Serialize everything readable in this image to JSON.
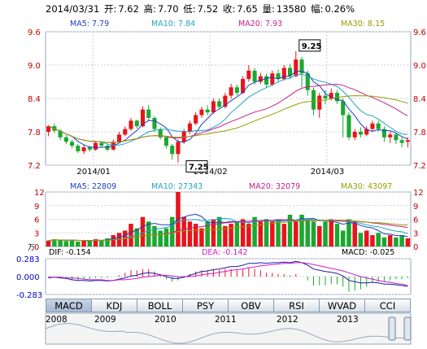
{
  "header": {
    "date": "2014/03/31",
    "open_label": "开:",
    "open": "7.62",
    "high_label": "高:",
    "high": "7.70",
    "low_label": "低:",
    "low": "7.52",
    "close_label": "收:",
    "close": "7.65",
    "volume_label": "量:",
    "volume": "13580",
    "change_label": "幅:",
    "change": "0.26%"
  },
  "price_ma": [
    {
      "label": "MA5: 7.79",
      "color": "#1f3fbf"
    },
    {
      "label": "MA10: 7.84",
      "color": "#21a3c4"
    },
    {
      "label": "MA20: 7.93",
      "color": "#c81e8c"
    },
    {
      "label": "MA30: 8.15",
      "color": "#9a9a00"
    }
  ],
  "volume_ma": [
    {
      "label": "MA5: 22809",
      "color": "#1f3fbf"
    },
    {
      "label": "MA10: 27343",
      "color": "#21a3c4"
    },
    {
      "label": "MA20: 32079",
      "color": "#c81e8c"
    },
    {
      "label": "MA30: 43097",
      "color": "#9a9a00"
    }
  ],
  "macd_labels": {
    "dif": "DIF: -0.154",
    "dea": "DEA: -0.142",
    "macd": "MACD: -0.025"
  },
  "volume_unit": "万",
  "tabs": [
    "MACD",
    "KDJ",
    "BOLL",
    "PSY",
    "OBV",
    "RSI",
    "WVAD",
    "CCI"
  ],
  "active_tab": "MACD",
  "years": [
    "2008",
    "2009",
    "2010",
    "2011",
    "2012",
    "2013"
  ],
  "colors": {
    "up": "#e8141a",
    "down": "#1aa830",
    "dif": "#1f1f9f",
    "dea": "#c81ec8",
    "grid": "#c8d0dc"
  },
  "chart_data": [
    {
      "type": "candlestick",
      "title": "",
      "x_tick_labels": [
        "2014/01",
        "2014/02",
        "2014/03"
      ],
      "y_ticks": [
        7.2,
        7.8,
        8.4,
        9.0,
        9.6
      ],
      "ylim": [
        7.2,
        9.6
      ],
      "annotations": [
        {
          "label": "9.25",
          "value": 9.25
        },
        {
          "label": "7.25",
          "value": 7.25
        }
      ],
      "candles": [
        [
          7.8,
          7.9,
          7.92,
          7.72
        ],
        [
          7.9,
          7.82,
          7.95,
          7.78
        ],
        [
          7.82,
          7.7,
          7.85,
          7.65
        ],
        [
          7.7,
          7.62,
          7.74,
          7.58
        ],
        [
          7.62,
          7.55,
          7.66,
          7.5
        ],
        [
          7.55,
          7.45,
          7.58,
          7.42
        ],
        [
          7.45,
          7.52,
          7.56,
          7.4
        ],
        [
          7.52,
          7.48,
          7.55,
          7.44
        ],
        [
          7.48,
          7.6,
          7.64,
          7.46
        ],
        [
          7.6,
          7.55,
          7.63,
          7.52
        ],
        [
          7.55,
          7.48,
          7.57,
          7.45
        ],
        [
          7.48,
          7.62,
          7.66,
          7.46
        ],
        [
          7.62,
          7.75,
          7.8,
          7.6
        ],
        [
          7.75,
          7.85,
          7.9,
          7.72
        ],
        [
          7.85,
          8.0,
          8.05,
          7.82
        ],
        [
          8.0,
          7.9,
          8.02,
          7.86
        ],
        [
          7.9,
          8.2,
          8.26,
          7.88
        ],
        [
          8.2,
          8.05,
          8.28,
          8.0
        ],
        [
          8.05,
          7.85,
          8.08,
          7.8
        ],
        [
          7.85,
          7.7,
          7.88,
          7.66
        ],
        [
          7.7,
          7.55,
          7.72,
          7.5
        ],
        [
          7.55,
          7.4,
          7.58,
          7.3
        ],
        [
          7.4,
          7.62,
          7.66,
          7.25
        ],
        [
          7.62,
          7.8,
          7.85,
          7.58
        ],
        [
          7.8,
          7.95,
          8.0,
          7.76
        ],
        [
          7.95,
          8.1,
          8.15,
          7.92
        ],
        [
          8.1,
          8.2,
          8.25,
          8.05
        ],
        [
          8.2,
          8.15,
          8.28,
          8.1
        ],
        [
          8.15,
          8.35,
          8.4,
          8.12
        ],
        [
          8.35,
          8.25,
          8.4,
          8.2
        ],
        [
          8.25,
          8.45,
          8.5,
          8.22
        ],
        [
          8.45,
          8.6,
          8.66,
          8.4
        ],
        [
          8.6,
          8.5,
          8.65,
          8.45
        ],
        [
          8.5,
          8.75,
          8.8,
          8.48
        ],
        [
          8.75,
          8.9,
          9.0,
          8.7
        ],
        [
          8.9,
          8.7,
          8.95,
          8.65
        ],
        [
          8.7,
          8.8,
          8.86,
          8.66
        ],
        [
          8.8,
          8.65,
          8.85,
          8.6
        ],
        [
          8.65,
          8.85,
          8.9,
          8.62
        ],
        [
          8.85,
          8.75,
          8.92,
          8.7
        ],
        [
          8.75,
          8.95,
          9.0,
          8.72
        ],
        [
          8.95,
          8.8,
          9.02,
          8.75
        ],
        [
          8.8,
          9.1,
          9.25,
          8.78
        ],
        [
          9.1,
          8.85,
          9.15,
          8.6
        ],
        [
          8.85,
          8.55,
          8.9,
          8.45
        ],
        [
          8.55,
          8.2,
          8.6,
          8.1
        ],
        [
          8.2,
          8.45,
          8.5,
          8.05
        ],
        [
          8.45,
          8.4,
          8.55,
          8.3
        ],
        [
          8.4,
          8.5,
          8.58,
          8.36
        ],
        [
          8.5,
          8.35,
          8.55,
          8.3
        ],
        [
          8.35,
          8.1,
          8.4,
          7.7
        ],
        [
          8.1,
          7.7,
          8.15,
          7.65
        ],
        [
          7.7,
          7.8,
          7.85,
          7.65
        ],
        [
          7.8,
          7.75,
          7.88,
          7.7
        ],
        [
          7.75,
          7.85,
          7.9,
          7.72
        ],
        [
          7.85,
          7.95,
          8.0,
          7.8
        ],
        [
          7.95,
          7.85,
          8.0,
          7.8
        ],
        [
          7.85,
          7.7,
          7.9,
          7.62
        ],
        [
          7.7,
          7.75,
          7.8,
          7.6
        ],
        [
          7.75,
          7.65,
          7.78,
          7.58
        ],
        [
          7.65,
          7.6,
          7.7,
          7.52
        ],
        [
          7.62,
          7.65,
          7.7,
          7.52
        ]
      ]
    },
    {
      "type": "bar",
      "title": "",
      "y_ticks": [
        0,
        3,
        6,
        9,
        12
      ],
      "ylim": [
        0,
        12
      ],
      "values": [
        1.3,
        1.6,
        1.4,
        1.2,
        1.5,
        1.1,
        1.3,
        1.2,
        1.6,
        1.4,
        1.8,
        2.5,
        3.0,
        3.5,
        5.0,
        4.0,
        6.5,
        5.5,
        4.5,
        3.5,
        4.0,
        6.5,
        12.0,
        6.5,
        5.5,
        5.0,
        4.0,
        5.5,
        6.0,
        6.5,
        4.5,
        5.0,
        5.5,
        6.0,
        5.0,
        6.5,
        5.5,
        6.0,
        5.5,
        6.0,
        5.0,
        7.0,
        5.5,
        7.0,
        6.0,
        5.5,
        4.5,
        5.5,
        6.0,
        5.0,
        3.5,
        6.0,
        5.5,
        3.0,
        3.5,
        2.5,
        3.0,
        2.0,
        2.5,
        2.0,
        2.5,
        1.8
      ],
      "ma_lines": true
    },
    {
      "type": "line",
      "title": "",
      "y_ticks": [
        0.283,
        0.0,
        -0.283
      ],
      "ylim": [
        -0.283,
        0.283
      ],
      "series": [
        {
          "name": "DIF"
        },
        {
          "name": "DEA"
        },
        {
          "name": "MACD"
        }
      ],
      "dif": [
        -0.02,
        -0.01,
        -0.02,
        -0.03,
        -0.05,
        -0.06,
        -0.06,
        -0.07,
        -0.06,
        -0.06,
        -0.07,
        -0.06,
        -0.04,
        -0.02,
        0.01,
        0.02,
        0.05,
        0.06,
        0.05,
        0.03,
        0.0,
        -0.03,
        -0.03,
        -0.01,
        0.02,
        0.05,
        0.08,
        0.09,
        0.11,
        0.12,
        0.14,
        0.16,
        0.16,
        0.18,
        0.21,
        0.21,
        0.22,
        0.21,
        0.22,
        0.22,
        0.23,
        0.22,
        0.24,
        0.22,
        0.18,
        0.12,
        0.1,
        0.08,
        0.07,
        0.05,
        0.01,
        -0.06,
        -0.08,
        -0.1,
        -0.1,
        -0.09,
        -0.1,
        -0.12,
        -0.12,
        -0.13,
        -0.14,
        -0.154
      ],
      "dea": [
        -0.01,
        -0.01,
        -0.01,
        -0.02,
        -0.02,
        -0.03,
        -0.04,
        -0.05,
        -0.05,
        -0.05,
        -0.06,
        -0.06,
        -0.05,
        -0.05,
        -0.04,
        -0.03,
        -0.01,
        0.0,
        0.01,
        0.02,
        0.02,
        0.01,
        0.0,
        0.0,
        0.0,
        0.01,
        0.03,
        0.04,
        0.05,
        0.07,
        0.08,
        0.1,
        0.11,
        0.12,
        0.14,
        0.15,
        0.17,
        0.18,
        0.19,
        0.2,
        0.21,
        0.21,
        0.22,
        0.22,
        0.21,
        0.19,
        0.17,
        0.15,
        0.13,
        0.11,
        0.09,
        0.06,
        0.03,
        0.0,
        -0.02,
        -0.04,
        -0.06,
        -0.08,
        -0.09,
        -0.11,
        -0.12,
        -0.142
      ]
    }
  ]
}
